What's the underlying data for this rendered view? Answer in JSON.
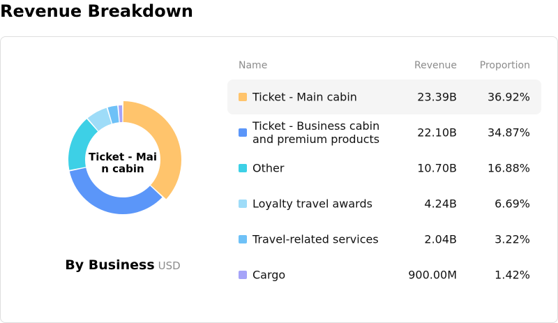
{
  "page": {
    "title": "Revenue Breakdown"
  },
  "chart": {
    "center_label": "Ticket - Main cabin",
    "caption": "By Business",
    "unit": "USD"
  },
  "table": {
    "headers": {
      "name": "Name",
      "revenue": "Revenue",
      "proportion": "Proportion"
    },
    "selected_index": 0,
    "rows": [
      {
        "name": "Ticket - Main cabin",
        "revenue": "23.39B",
        "proportion": "36.92%",
        "color": "#FFC46C"
      },
      {
        "name": "Ticket - Business cabin and premium products",
        "revenue": "22.10B",
        "proportion": "34.87%",
        "color": "#5B96F9"
      },
      {
        "name": "Other",
        "revenue": "10.70B",
        "proportion": "16.88%",
        "color": "#3DD0E6"
      },
      {
        "name": "Loyalty travel awards",
        "revenue": "4.24B",
        "proportion": "6.69%",
        "color": "#9EDCF8"
      },
      {
        "name": "Travel-related services",
        "revenue": "2.04B",
        "proportion": "3.22%",
        "color": "#6EC1F7"
      },
      {
        "name": "Cargo",
        "revenue": "900.00M",
        "proportion": "1.42%",
        "color": "#A5A3F8"
      }
    ]
  },
  "chart_data": {
    "type": "pie",
    "donut": true,
    "categories": [
      "Ticket - Main cabin",
      "Ticket - Business cabin and premium products",
      "Other",
      "Loyalty travel awards",
      "Travel-related services",
      "Cargo"
    ],
    "values": [
      23.39,
      22.1,
      10.7,
      4.24,
      2.04,
      0.9
    ],
    "proportions": [
      36.92,
      34.87,
      16.88,
      6.69,
      3.22,
      1.42
    ],
    "colors": [
      "#FFC46C",
      "#5B96F9",
      "#3DD0E6",
      "#9EDCF8",
      "#6EC1F7",
      "#A5A3F8"
    ],
    "highlighted": "Ticket - Main cabin",
    "title": "By Business",
    "unit": "USD",
    "legend": "right"
  }
}
